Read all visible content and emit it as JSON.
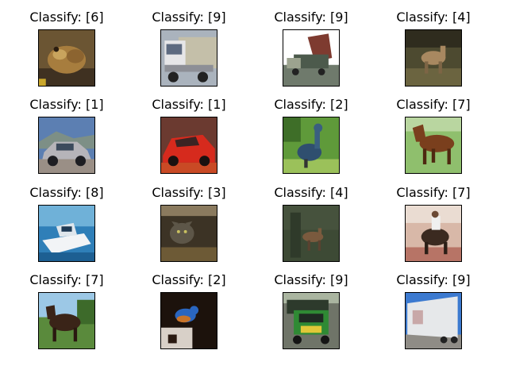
{
  "figure": {
    "panels": [
      {
        "title": "Classify: [6]",
        "subject": "frog"
      },
      {
        "title": "Classify: [9]",
        "subject": "truck"
      },
      {
        "title": "Classify: [9]",
        "subject": "truck"
      },
      {
        "title": "Classify: [4]",
        "subject": "deer"
      },
      {
        "title": "Classify: [1]",
        "subject": "automobile"
      },
      {
        "title": "Classify: [1]",
        "subject": "automobile"
      },
      {
        "title": "Classify: [2]",
        "subject": "bird"
      },
      {
        "title": "Classify: [7]",
        "subject": "horse"
      },
      {
        "title": "Classify: [8]",
        "subject": "ship"
      },
      {
        "title": "Classify: [3]",
        "subject": "cat"
      },
      {
        "title": "Classify: [4]",
        "subject": "deer"
      },
      {
        "title": "Classify: [7]",
        "subject": "horse"
      },
      {
        "title": "Classify: [7]",
        "subject": "horse"
      },
      {
        "title": "Classify: [2]",
        "subject": "bird"
      },
      {
        "title": "Classify: [9]",
        "subject": "truck"
      },
      {
        "title": "Classify: [9]",
        "subject": "truck"
      }
    ]
  }
}
